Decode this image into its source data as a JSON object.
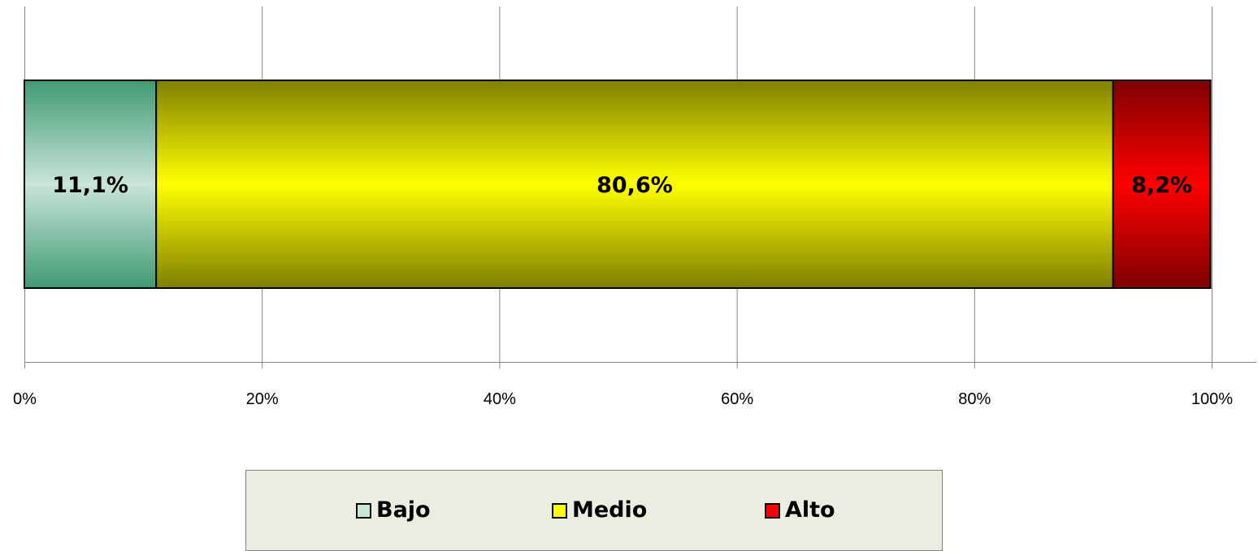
{
  "chart_data": {
    "type": "bar",
    "orientation": "horizontal",
    "stacked": "100%",
    "categories": [
      ""
    ],
    "series": [
      {
        "name": "Bajo",
        "values": [
          11.1
        ],
        "label": "11,1%",
        "color": "#c9e5d8",
        "edge_color": "#3f9a72"
      },
      {
        "name": "Medio",
        "values": [
          80.6
        ],
        "label": "80,6%",
        "color": "#ffff00",
        "edge_color": "#7f7f00"
      },
      {
        "name": "Alto",
        "values": [
          8.2
        ],
        "label": "8,2%",
        "color": "#ff0000",
        "edge_color": "#7f0000"
      }
    ],
    "x_ticks": [
      "0%",
      "20%",
      "40%",
      "60%",
      "80%",
      "100%"
    ],
    "xlim": [
      0,
      100
    ],
    "grid": true,
    "legend_position": "bottom"
  },
  "legend": {
    "items": [
      {
        "label": "Bajo",
        "color": "#c9e5d8"
      },
      {
        "label": "Medio",
        "color": "#ffff00"
      },
      {
        "label": "Alto",
        "color": "#ff0000"
      }
    ]
  }
}
